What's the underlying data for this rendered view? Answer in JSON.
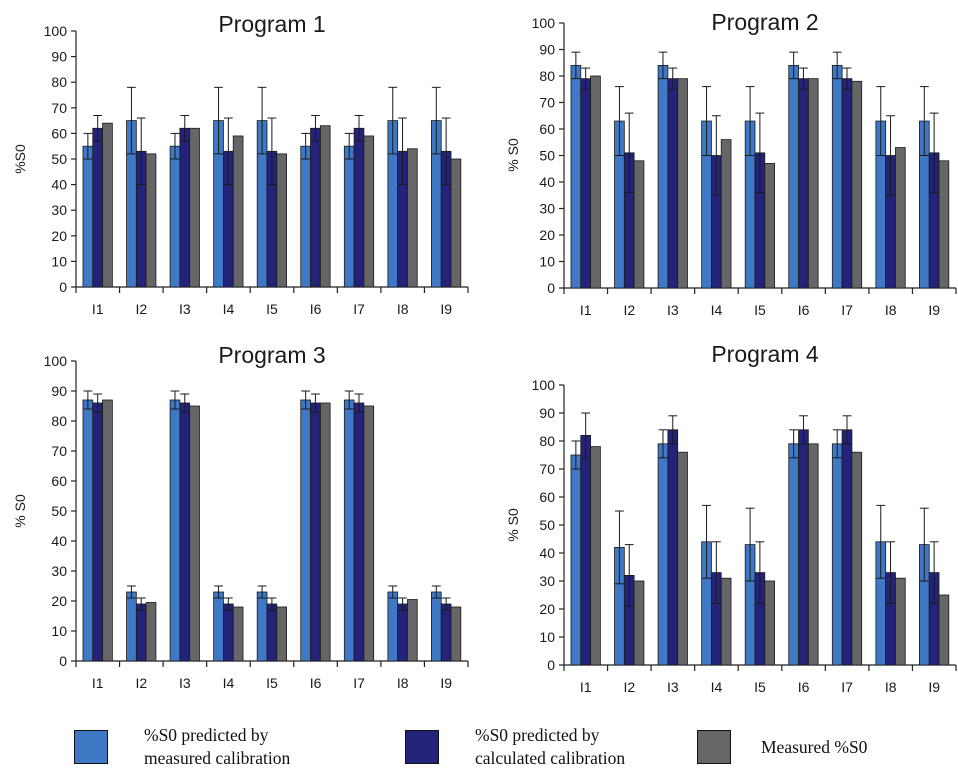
{
  "chart_data": [
    {
      "type": "bar",
      "title": "Program 1",
      "ylabel": "%S0",
      "ylim": [
        0,
        100
      ],
      "yticks": [
        "0",
        "10",
        "20",
        "30",
        "40",
        "50",
        "60",
        "70",
        "80",
        "90",
        "100"
      ],
      "categories": [
        "I1",
        "I2",
        "I3",
        "I4",
        "I5",
        "I6",
        "I7",
        "I8",
        "I9"
      ],
      "series": [
        {
          "name": "%S0 predicted by measured calibration",
          "values": [
            55,
            65,
            55,
            65,
            65,
            55,
            55,
            65,
            65
          ],
          "errors": [
            5,
            13,
            5,
            13,
            13,
            5,
            5,
            13,
            13
          ]
        },
        {
          "name": "%S0 predicted by calculated calibration",
          "values": [
            62,
            53,
            62,
            53,
            53,
            62,
            62,
            53,
            53
          ],
          "errors": [
            5,
            13,
            5,
            13,
            13,
            5,
            5,
            13,
            13
          ]
        },
        {
          "name": "Measured %S0",
          "values": [
            64,
            52,
            62,
            59,
            52,
            63,
            59,
            54,
            50
          ]
        }
      ]
    },
    {
      "type": "bar",
      "title": "Program 2",
      "ylabel": "% S0",
      "ylim": [
        0,
        100
      ],
      "yticks": [
        "0",
        "10",
        "20",
        "30",
        "40",
        "50",
        "60",
        "70",
        "80",
        "90",
        "100"
      ],
      "categories": [
        "I1",
        "I2",
        "I3",
        "I4",
        "I5",
        "I6",
        "I7",
        "I8",
        "I9"
      ],
      "series": [
        {
          "name": "%S0 predicted by measured calibration",
          "values": [
            84,
            63,
            84,
            63,
            63,
            84,
            84,
            63,
            63
          ],
          "errors": [
            5,
            13,
            5,
            13,
            13,
            5,
            5,
            13,
            13
          ]
        },
        {
          "name": "%S0 predicted by calculated calibration",
          "values": [
            79,
            51,
            79,
            50,
            51,
            79,
            79,
            50,
            51
          ],
          "errors": [
            4,
            15,
            4,
            15,
            15,
            4,
            4,
            15,
            15
          ]
        },
        {
          "name": "Measured %S0",
          "values": [
            80,
            48,
            79,
            56,
            47,
            79,
            78,
            53,
            48
          ]
        }
      ]
    },
    {
      "type": "bar",
      "title": "Program 3",
      "ylabel": "% S0",
      "ylim": [
        0,
        100
      ],
      "yticks": [
        "0",
        "10",
        "20",
        "30",
        "40",
        "50",
        "60",
        "70",
        "80",
        "90",
        "100"
      ],
      "categories": [
        "I1",
        "I2",
        "I3",
        "I4",
        "I5",
        "I6",
        "I7",
        "I8",
        "I9"
      ],
      "series": [
        {
          "name": "%S0 predicted by measured calibration",
          "values": [
            87,
            23,
            87,
            23,
            23,
            87,
            87,
            23,
            23
          ],
          "errors": [
            3,
            2,
            3,
            2,
            2,
            3,
            3,
            2,
            2
          ]
        },
        {
          "name": "%S0 predicted by calculated calibration",
          "values": [
            86,
            19,
            86,
            19,
            19,
            86,
            86,
            19,
            19
          ],
          "errors": [
            3,
            2,
            3,
            2,
            2,
            3,
            3,
            2,
            2
          ]
        },
        {
          "name": "Measured %S0",
          "values": [
            87,
            19.5,
            85,
            18,
            18,
            86,
            85,
            20.5,
            18
          ]
        }
      ]
    },
    {
      "type": "bar",
      "title": "Program 4",
      "ylabel": "% S0",
      "ylim": [
        0,
        100
      ],
      "yticks": [
        "0",
        "10",
        "20",
        "30",
        "40",
        "50",
        "60",
        "70",
        "80",
        "90",
        "100"
      ],
      "categories": [
        "I1",
        "I2",
        "I3",
        "I4",
        "I5",
        "I6",
        "I7",
        "I8",
        "I9"
      ],
      "series": [
        {
          "name": "%S0 predicted by measured calibration",
          "values": [
            75,
            42,
            79,
            44,
            43,
            79,
            79,
            44,
            43
          ],
          "errors": [
            5,
            13,
            5,
            13,
            13,
            5,
            5,
            13,
            13
          ]
        },
        {
          "name": "%S0 predicted by calculated calibration",
          "values": [
            82,
            32,
            84,
            33,
            33,
            84,
            84,
            33,
            33
          ],
          "errors": [
            8,
            11,
            5,
            11,
            11,
            5,
            5,
            11,
            11
          ]
        },
        {
          "name": "Measured %S0",
          "values": [
            78,
            30,
            76,
            31,
            30,
            79,
            76,
            31,
            25
          ]
        }
      ]
    }
  ],
  "legend": [
    {
      "line1": "%S0 predicted by",
      "line2": "measured calibration",
      "color": "#3f79c5"
    },
    {
      "line1": "%S0 predicted by",
      "line2": "calculated calibration",
      "color": "#24237a"
    },
    {
      "line1": "Measured %S0",
      "line2": "",
      "color": "#666666"
    }
  ],
  "colors": {
    "measured_calibration": "#3f79c5",
    "calculated_calibration": "#24237a",
    "measured": "#666666"
  }
}
